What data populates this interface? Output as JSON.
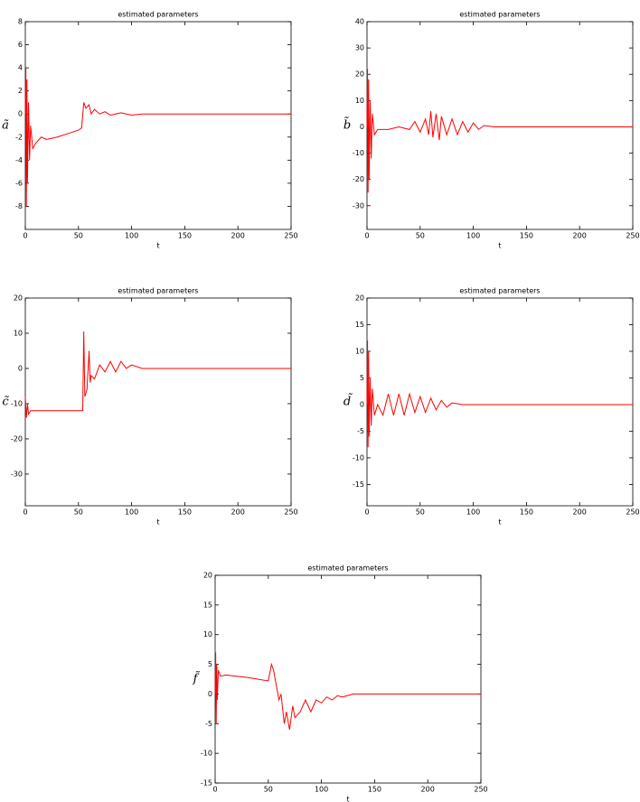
{
  "chart_data": [
    {
      "type": "line",
      "title": "estimated parameters",
      "xlabel": "t",
      "ylabel": "ã",
      "x": [
        0,
        0.5,
        1,
        1.5,
        2,
        3,
        4,
        5,
        7,
        10,
        15,
        20,
        30,
        40,
        50,
        53,
        55,
        57,
        60,
        62,
        65,
        70,
        75,
        80,
        90,
        100,
        110,
        120,
        150,
        200,
        250
      ],
      "series": [
        {
          "color": "#ff0000",
          "values": [
            0,
            4,
            -8,
            3,
            -6,
            1,
            -4,
            -1,
            -3,
            -2.5,
            -2,
            -2.2,
            -2,
            -1.7,
            -1.4,
            -1.2,
            1,
            0.5,
            0.8,
            0,
            0.4,
            0,
            0.2,
            -0.1,
            0.1,
            -0.1,
            0,
            0,
            0,
            0,
            0
          ]
        }
      ],
      "xlim": [
        0,
        250
      ],
      "xticks": [
        0,
        50,
        100,
        150,
        200,
        250
      ],
      "ylim": [
        -10,
        8
      ],
      "yticks": [
        -8,
        -6,
        -4,
        -2,
        0,
        2,
        4,
        6,
        8
      ]
    },
    {
      "type": "line",
      "title": "estimated parameters",
      "xlabel": "t",
      "ylabel": "b̃",
      "x": [
        0,
        0.5,
        1,
        1.5,
        2,
        3,
        4,
        5,
        7,
        10,
        20,
        30,
        40,
        45,
        50,
        55,
        58,
        60,
        62,
        65,
        68,
        70,
        75,
        80,
        85,
        90,
        95,
        100,
        105,
        110,
        120,
        150,
        200,
        250
      ],
      "series": [
        {
          "color": "#ff0000",
          "values": [
            0,
            22,
            -25,
            18,
            -20,
            10,
            -12,
            5,
            -3,
            -1,
            -1,
            0,
            -1,
            2,
            -2,
            3,
            -3,
            6,
            -4,
            5,
            -5,
            4,
            -3,
            3,
            -3,
            2,
            -2,
            1.5,
            -1,
            0.5,
            0,
            0,
            0,
            0
          ]
        }
      ],
      "xlim": [
        0,
        250
      ],
      "xticks": [
        0,
        50,
        100,
        150,
        200,
        250
      ],
      "ylim": [
        -39,
        40
      ],
      "yticks": [
        -30,
        -20,
        -10,
        0,
        10,
        20,
        30,
        40
      ]
    },
    {
      "type": "line",
      "title": "estimated parameters",
      "xlabel": "t",
      "ylabel": "c̃",
      "x": [
        0,
        1,
        2,
        3,
        5,
        10,
        20,
        30,
        40,
        50,
        54,
        55,
        56,
        58,
        60,
        61,
        62,
        65,
        70,
        75,
        80,
        85,
        90,
        95,
        100,
        110,
        150,
        200,
        250
      ],
      "series": [
        {
          "color": "#ff0000",
          "values": [
            -8,
            -14,
            -10,
            -13,
            -12,
            -12,
            -12,
            -12,
            -12,
            -12,
            -12,
            10.5,
            -8,
            -6,
            5,
            -4,
            -2,
            -3,
            1,
            -1,
            2,
            -1,
            2,
            0,
            1,
            0,
            0,
            0,
            0
          ]
        }
      ],
      "xlim": [
        0,
        250
      ],
      "xticks": [
        0,
        50,
        100,
        150,
        200,
        250
      ],
      "ylim": [
        -39,
        20
      ],
      "yticks": [
        -30,
        -20,
        -10,
        0,
        10,
        20
      ]
    },
    {
      "type": "line",
      "title": "estimated parameters",
      "xlabel": "t",
      "ylabel": "d̃",
      "x": [
        0,
        0.5,
        1,
        1.5,
        2,
        3,
        4,
        5,
        7,
        10,
        15,
        20,
        25,
        30,
        35,
        40,
        45,
        50,
        55,
        60,
        65,
        70,
        75,
        80,
        90,
        100,
        150,
        200,
        250
      ],
      "series": [
        {
          "color": "#ff0000",
          "values": [
            0,
            12,
            -8,
            10,
            -6,
            5,
            -4,
            3,
            -2,
            0,
            -2,
            2,
            -2,
            2,
            -2,
            2,
            -1.5,
            1.5,
            -1.5,
            1.2,
            -1,
            0.8,
            -0.5,
            0.3,
            0,
            0,
            0,
            0,
            0
          ]
        }
      ],
      "xlim": [
        0,
        250
      ],
      "xticks": [
        0,
        50,
        100,
        150,
        200,
        250
      ],
      "ylim": [
        -19,
        20
      ],
      "yticks": [
        -15,
        -10,
        -5,
        0,
        5,
        10,
        15,
        20
      ]
    },
    {
      "type": "line",
      "title": "estimated parameters",
      "xlabel": "t",
      "ylabel": "f̃",
      "x": [
        0,
        0.5,
        1,
        1.5,
        2,
        3,
        5,
        10,
        20,
        30,
        40,
        50,
        53,
        55,
        57,
        60,
        62,
        65,
        67,
        70,
        73,
        75,
        80,
        85,
        90,
        95,
        100,
        105,
        110,
        115,
        120,
        130,
        140,
        150,
        200,
        250
      ],
      "series": [
        {
          "color": "#ff0000",
          "values": [
            0,
            7,
            -5,
            5,
            -1,
            4,
            3,
            3.2,
            3,
            2.8,
            2.5,
            2.2,
            5,
            4,
            2,
            -1,
            0,
            -5,
            -3,
            -6,
            -2,
            -4,
            -3,
            -1,
            -3,
            -1,
            -1.5,
            -0.5,
            -1,
            -0.3,
            -0.5,
            0,
            0,
            0,
            0,
            0
          ]
        }
      ],
      "xlim": [
        0,
        250
      ],
      "xticks": [
        0,
        50,
        100,
        150,
        200,
        250
      ],
      "ylim": [
        -15,
        20
      ],
      "yticks": [
        -15,
        -10,
        -5,
        0,
        5,
        10,
        15,
        20
      ]
    }
  ]
}
